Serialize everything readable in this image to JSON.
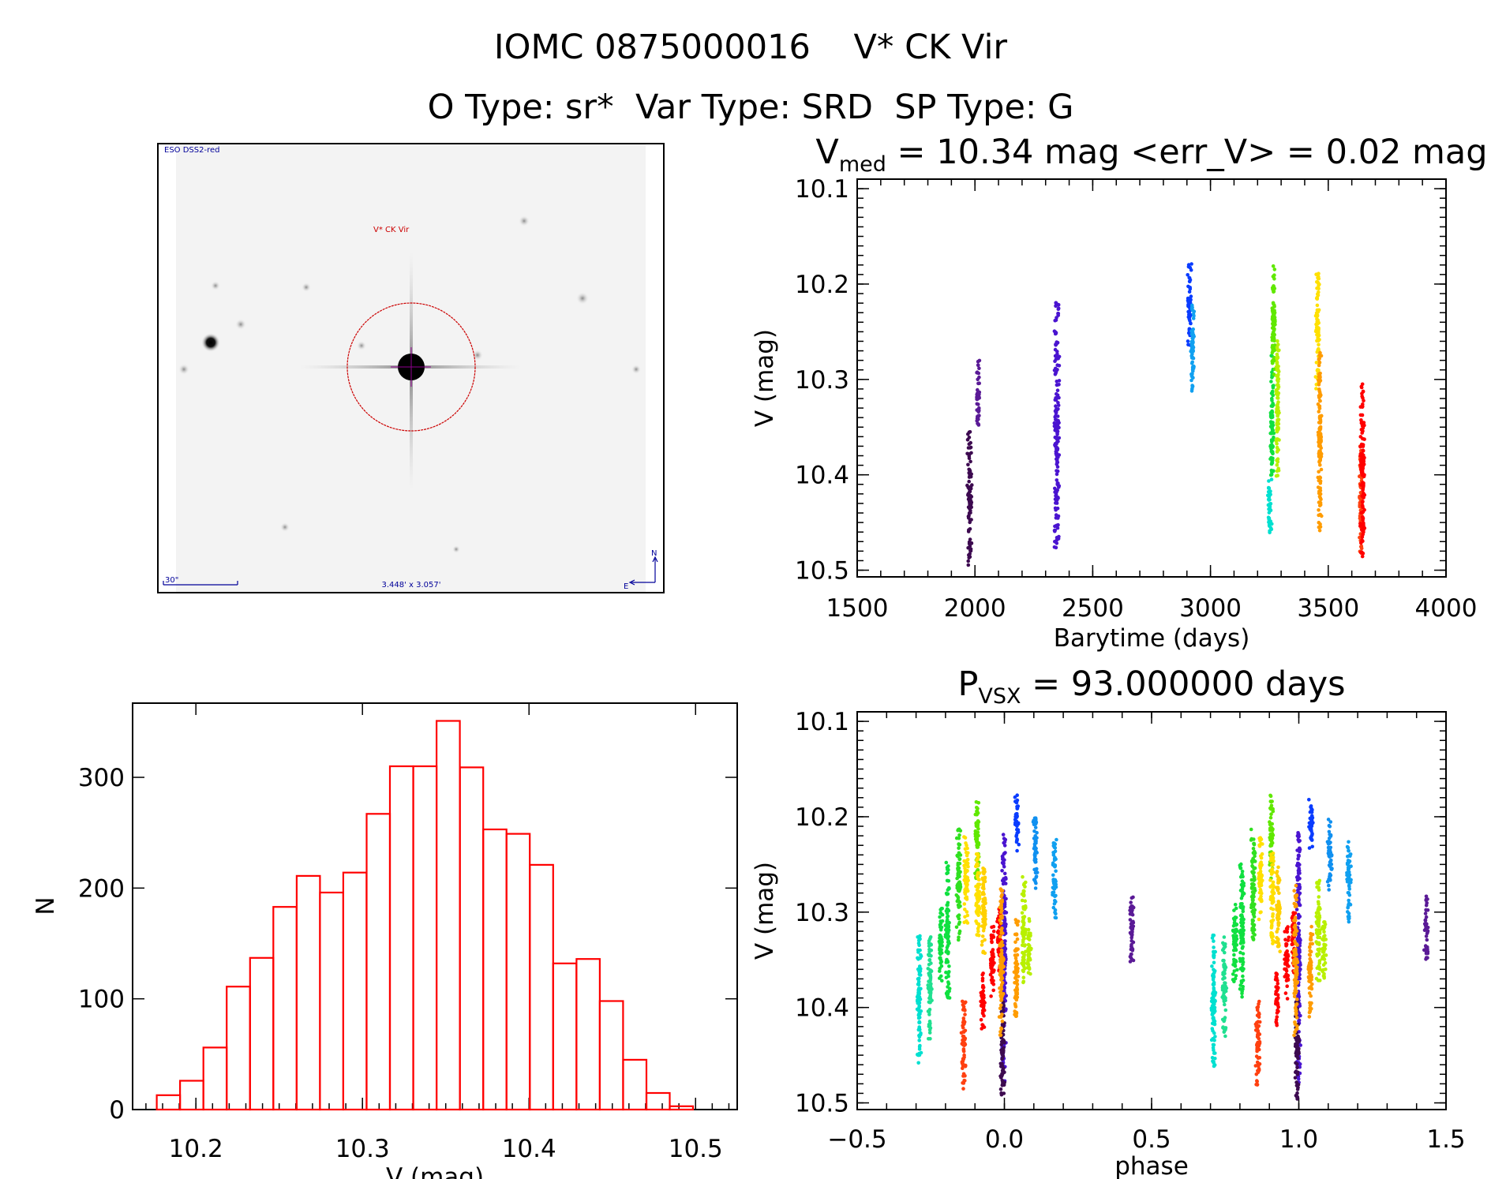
{
  "header": {
    "title_line1": "IOMC 0875000016    V* CK Vir",
    "title_line2": "O Type: sr*  Var Type: SRD  SP Type: G"
  },
  "finder_image": {
    "survey_label": "ESO DSS2-red",
    "target_label": "V* CK Vir",
    "scale_label": "30\"",
    "field_label": "3.448' x 3.057'",
    "north_label": "N",
    "east_label": "E",
    "circle_color": "#cc0000",
    "label_color": "#000099"
  },
  "chart_data": [
    {
      "id": "light_curve",
      "type": "scatter",
      "title_main": "V",
      "title_sub": "med",
      "title_rest": " = 10.34 mag <err_V> = 0.02 mag",
      "xlabel": "Barytime (days)",
      "ylabel": "V (mag)",
      "xlim": [
        1500,
        4000
      ],
      "ylim": [
        10.09,
        10.507
      ],
      "y_inverted": true,
      "xticks": [
        1500,
        2000,
        2500,
        3000,
        3500,
        4000
      ],
      "xtick_labels": [
        "1500",
        "2000",
        "2500",
        "3000",
        "3500",
        "4000"
      ],
      "yticks": [
        10.1,
        10.2,
        10.3,
        10.4,
        10.5
      ],
      "ytick_labels": [
        "10.1",
        "10.2",
        "10.3",
        "10.4",
        "10.5"
      ],
      "grid": false,
      "series": [
        {
          "t": [
            1972,
            1982
          ],
          "v": [
            10.355,
            10.496
          ],
          "color": "#3d0a50"
        },
        {
          "t": [
            2012,
            2016
          ],
          "v": [
            10.28,
            10.352
          ],
          "color": "#5a1a96"
        },
        {
          "t": [
            2341,
            2354
          ],
          "v": [
            10.217,
            10.478
          ],
          "color": "#4a14d0"
        },
        {
          "t": [
            2906,
            2916
          ],
          "v": [
            10.177,
            10.266
          ],
          "color": "#0a3cff"
        },
        {
          "t": [
            2920,
            2927
          ],
          "v": [
            10.222,
            10.313
          ],
          "color": "#10a0f0"
        },
        {
          "t": [
            3248,
            3256
          ],
          "v": [
            10.404,
            10.462
          ],
          "color": "#00e0d0"
        },
        {
          "t": [
            3258,
            3264
          ],
          "v": [
            10.275,
            10.404
          ],
          "color": "#10e040"
        },
        {
          "t": [
            3266,
            3270
          ],
          "v": [
            10.177,
            10.297
          ],
          "color": "#60e800"
        },
        {
          "t": [
            3283,
            3287
          ],
          "v": [
            10.259,
            10.402
          ],
          "color": "#b8f000"
        },
        {
          "t": [
            3451,
            3459
          ],
          "v": [
            10.182,
            10.311
          ],
          "color": "#ffe000"
        },
        {
          "t": [
            3461,
            3467
          ],
          "v": [
            10.27,
            10.461
          ],
          "color": "#ff9c00"
        },
        {
          "t": [
            3636,
            3642
          ],
          "v": [
            10.37,
            10.487
          ],
          "color": "#ff4010"
        },
        {
          "t": [
            3640,
            3650
          ],
          "v": [
            10.298,
            10.486
          ],
          "color": "#ff0000"
        }
      ]
    },
    {
      "id": "phase_curve",
      "type": "scatter",
      "title_main": "P",
      "title_sub": "VSX",
      "title_rest": " = 93.000000 days",
      "xlabel": "phase",
      "ylabel": "V (mag)",
      "xlim": [
        -0.5,
        1.5
      ],
      "ylim": [
        10.09,
        10.507
      ],
      "y_inverted": true,
      "xticks": [
        -0.5,
        0.0,
        0.5,
        1.0,
        1.5
      ],
      "xtick_labels": [
        "−0.5",
        "0.0",
        "0.5",
        "1.0",
        "1.5"
      ],
      "yticks": [
        10.1,
        10.2,
        10.3,
        10.4,
        10.5
      ],
      "ytick_labels": [
        "10.1",
        "10.2",
        "10.3",
        "10.4",
        "10.5"
      ],
      "grid": false,
      "repeat_phase_offset": 1,
      "series": [
        {
          "phase": -0.29,
          "v": [
            10.324,
            10.463
          ],
          "color": "#00e0d0"
        },
        {
          "phase": -0.253,
          "v": [
            10.326,
            10.433
          ],
          "color": "#20e090"
        },
        {
          "phase": -0.217,
          "v": [
            10.29,
            10.373
          ],
          "color": "#10e040"
        },
        {
          "phase": -0.193,
          "v": [
            10.248,
            10.39
          ],
          "color": "#10e040"
        },
        {
          "phase": -0.155,
          "v": [
            10.212,
            10.33
          ],
          "color": "#30e020"
        },
        {
          "phase": -0.13,
          "v": [
            10.221,
            10.312
          ],
          "color": "#ffe000"
        },
        {
          "phase": -0.139,
          "v": [
            10.39,
            10.487
          ],
          "color": "#ff4010"
        },
        {
          "phase": -0.093,
          "v": [
            10.176,
            10.266
          ],
          "color": "#60e800"
        },
        {
          "phase": -0.09,
          "v": [
            10.238,
            10.333
          ],
          "color": "#ffe000"
        },
        {
          "phase": -0.07,
          "v": [
            10.25,
            10.343
          ],
          "color": "#ffd000"
        },
        {
          "phase": -0.074,
          "v": [
            10.364,
            10.427
          ],
          "color": "#ff0000"
        },
        {
          "phase": -0.041,
          "v": [
            10.315,
            10.392
          ],
          "color": "#ff0000"
        },
        {
          "phase": -0.017,
          "v": [
            10.294,
            10.364
          ],
          "color": "#ff0000"
        },
        {
          "phase": -0.001,
          "v": [
            10.214,
            10.48
          ],
          "color": "#4a14d0"
        },
        {
          "phase": -0.006,
          "v": [
            10.394,
            10.497
          ],
          "color": "#3d0a50"
        },
        {
          "phase": -0.01,
          "v": [
            10.272,
            10.431
          ],
          "color": "#ff9c00"
        },
        {
          "phase": 0.04,
          "v": [
            10.308,
            10.41
          ],
          "color": "#ff9c00"
        },
        {
          "phase": 0.042,
          "v": [
            10.176,
            10.237
          ],
          "color": "#0a3cff"
        },
        {
          "phase": 0.066,
          "v": [
            10.263,
            10.375
          ],
          "color": "#b8f000"
        },
        {
          "phase": 0.085,
          "v": [
            10.304,
            10.373
          ],
          "color": "#b8f000"
        },
        {
          "phase": 0.105,
          "v": [
            10.2,
            10.279
          ],
          "color": "#1090f0"
        },
        {
          "phase": 0.17,
          "v": [
            10.224,
            10.312
          ],
          "color": "#10a0f0"
        },
        {
          "phase": 0.433,
          "v": [
            10.28,
            10.352
          ],
          "color": "#5a1a96"
        }
      ]
    },
    {
      "id": "histogram",
      "type": "bar",
      "xlabel": "V (mag)",
      "ylabel": "N",
      "xlim": [
        10.162,
        10.525
      ],
      "ylim": [
        0,
        367
      ],
      "xticks": [
        10.2,
        10.3,
        10.4,
        10.5
      ],
      "xtick_labels": [
        "10.2",
        "10.3",
        "10.4",
        "10.5"
      ],
      "yticks": [
        0,
        100,
        200,
        300
      ],
      "ytick_labels": [
        "0",
        "100",
        "200",
        "300"
      ],
      "bin_start": 10.1765,
      "bin_width": 0.014,
      "counts": [
        13,
        26,
        56,
        111,
        137,
        183,
        211,
        196,
        214,
        267,
        310,
        310,
        351,
        309,
        253,
        249,
        221,
        132,
        136,
        98,
        45,
        15,
        3
      ],
      "bar_color": "#ff0000",
      "grid": false
    }
  ]
}
